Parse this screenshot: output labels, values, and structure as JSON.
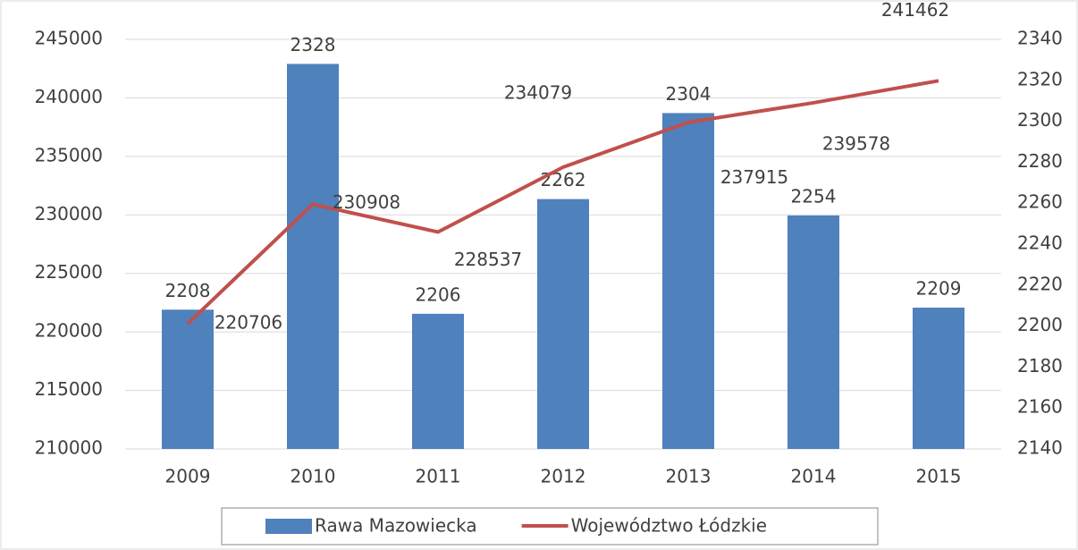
{
  "chart_data": {
    "type": "combo",
    "categories": [
      "2009",
      "2010",
      "2011",
      "2012",
      "2013",
      "2014",
      "2015"
    ],
    "series": [
      {
        "name": "Rawa Mazowiecka",
        "type": "bar",
        "axis": "y2",
        "color": "#4f81bd",
        "values": [
          2208,
          2328,
          2206,
          2262,
          2304,
          2254,
          2209
        ]
      },
      {
        "name": "Województwo Łódzkie",
        "type": "line",
        "color": "#c0504d",
        "values": [
          220706,
          230908,
          228537,
          234079,
          237915,
          239578,
          241462
        ]
      }
    ],
    "ylim": [
      210000,
      245000
    ],
    "yticks": [
      210000,
      215000,
      220000,
      225000,
      230000,
      235000,
      240000,
      245000
    ],
    "y2lim": [
      2140,
      2340
    ],
    "y2ticks": [
      2140,
      2160,
      2180,
      2200,
      2220,
      2240,
      2260,
      2280,
      2300,
      2320,
      2340
    ],
    "grid": true,
    "legend": "bottom"
  }
}
